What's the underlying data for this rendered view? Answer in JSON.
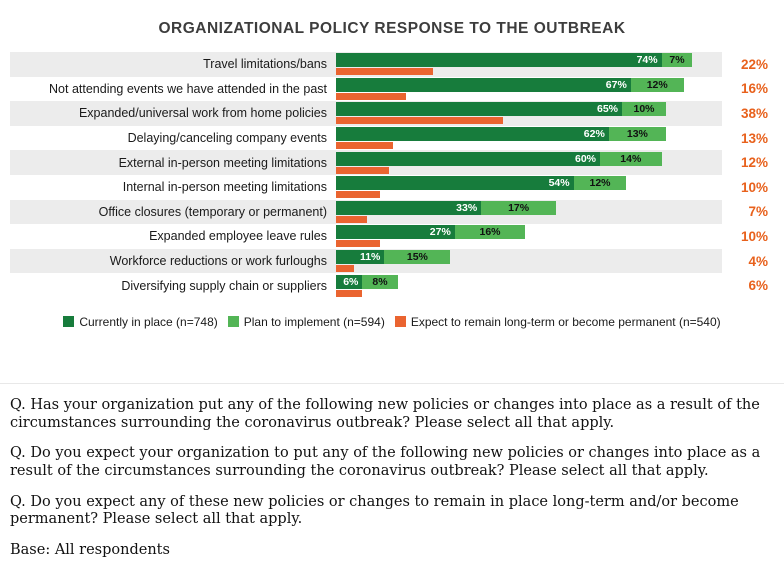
{
  "title": "ORGANIZATIONAL POLICY RESPONSE TO THE OUTBREAK",
  "colors": {
    "dark_green": "#177c3c",
    "light_green": "#53b556",
    "orange": "#ea6430",
    "orange_text": "#e8611c",
    "stripe": "#ececec"
  },
  "chart_data": {
    "type": "bar",
    "orientation": "horizontal",
    "title": "ORGANIZATIONAL POLICY RESPONSE TO THE OUTBREAK",
    "categories": [
      "Travel limitations/bans",
      "Not attending events we have attended in the past",
      "Expanded/universal work from home policies",
      "Delaying/canceling company events",
      "External in-person meeting limitations",
      "Internal in-person meeting limitations",
      "Office closures (temporary or permanent)",
      "Expanded employee leave rules",
      "Workforce reductions or work furloughs",
      "Diversifying supply chain or suppliers"
    ],
    "series": [
      {
        "name": "Currently in place (n=748)",
        "values": [
          74,
          67,
          65,
          62,
          60,
          54,
          33,
          27,
          11,
          6
        ]
      },
      {
        "name": "Plan to implement (n=594)",
        "values": [
          7,
          12,
          10,
          13,
          14,
          12,
          17,
          16,
          15,
          8
        ]
      },
      {
        "name": "Expect to remain long-term or become permanent (n=540)",
        "values": [
          22,
          16,
          38,
          13,
          12,
          10,
          7,
          10,
          4,
          6
        ]
      }
    ],
    "value_suffix": "%",
    "xlim": [
      0,
      100
    ],
    "grid": false,
    "legend_position": "bottom"
  },
  "footer": {
    "paragraphs": [
      "Q. Has your organization put any of the following new policies or changes into place as a result of the circumstances surrounding the coronavirus outbreak? Please select all that apply.",
      "Q. Do you expect your organization to put any of the following new policies or changes into place as a result of the circumstances surrounding the coronavirus outbreak? Please select all that apply.",
      "Q. Do you expect any of these new policies or changes to remain in place long-term and/or become permanent? Please select all that apply."
    ],
    "base": "Base: All respondents"
  }
}
